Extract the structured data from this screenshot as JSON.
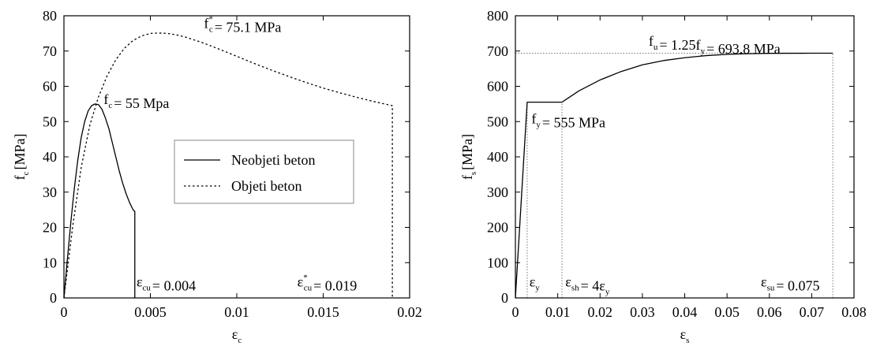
{
  "chart_data": [
    {
      "type": "line",
      "xlabel_base": "ε",
      "xlabel_sub": "c",
      "ylabel_base": "f",
      "ylabel_sub": "c",
      "ylabel_unit": "[MPa]",
      "xlim": [
        0,
        0.02
      ],
      "ylim": [
        0,
        80
      ],
      "xticks": [
        0,
        0.005,
        0.01,
        0.015,
        0.02
      ],
      "xtick_labels": [
        "0",
        "0.005",
        "0.01",
        "0.015",
        "0.02"
      ],
      "yticks": [
        0,
        10,
        20,
        30,
        40,
        50,
        60,
        70,
        80
      ],
      "ytick_labels": [
        "0",
        "10",
        "20",
        "30",
        "40",
        "50",
        "60",
        "70",
        "80"
      ],
      "grid": false,
      "legend": {
        "placement": "center-right",
        "entries": [
          "Neobjeti beton",
          "Objeti beton"
        ]
      },
      "series": [
        {
          "name": "Neobjeti beton",
          "style": "solid",
          "x": [
            0,
            0.0002,
            0.0004,
            0.0006,
            0.0008,
            0.001,
            0.0012,
            0.0014,
            0.0016,
            0.0018,
            0.002,
            0.0022,
            0.0024,
            0.0026,
            0.0028,
            0.003,
            0.0032,
            0.0034,
            0.0036,
            0.0038,
            0.004,
            0.0041,
            0.0041
          ],
          "y": [
            0,
            11,
            21.5,
            31,
            39,
            45.5,
            50,
            53,
            54.5,
            55,
            54.8,
            53.5,
            51,
            48,
            44,
            40,
            36,
            32.5,
            29.5,
            27,
            25,
            24.5,
            0
          ]
        },
        {
          "name": "Objeti beton",
          "style": "dotted",
          "x": [
            0,
            0.0005,
            0.001,
            0.0015,
            0.002,
            0.0025,
            0.003,
            0.0035,
            0.004,
            0.0045,
            0.005,
            0.0055,
            0.006,
            0.0065,
            0.007,
            0.008,
            0.009,
            0.01,
            0.011,
            0.012,
            0.013,
            0.014,
            0.015,
            0.016,
            0.017,
            0.018,
            0.019,
            0.019
          ],
          "y": [
            0,
            20,
            37,
            49,
            57,
            63,
            67.5,
            70.8,
            73,
            74.3,
            75,
            75.1,
            75,
            74.6,
            74,
            72.4,
            70.5,
            68.5,
            66.5,
            64.6,
            62.8,
            61.1,
            59.5,
            58.1,
            56.8,
            55.6,
            54.5,
            0
          ]
        }
      ],
      "annotations": [
        {
          "base": "f",
          "sub": "c",
          "rest": "= 55 Mpa",
          "x": 0.0023,
          "y": 55
        },
        {
          "base": "f",
          "sup": "*",
          "sub": "c",
          "rest": "= 75.1 MPa",
          "x": 0.0081,
          "y": 76.5
        },
        {
          "base": "ε",
          "sub": "cu",
          "rest": "= 0.004",
          "x": 0.0042,
          "y": 3.2
        },
        {
          "base": "ε",
          "sub": "cu",
          "sup": "*",
          "rest": "= 0.019",
          "x": 0.0135,
          "y": 3.2
        }
      ]
    },
    {
      "type": "line",
      "xlabel_base": "ε",
      "xlabel_sub": "s",
      "ylabel_base": "f",
      "ylabel_sub": "s",
      "ylabel_unit": "[MPa]",
      "xlim": [
        0,
        0.08
      ],
      "ylim": [
        0,
        800
      ],
      "xticks": [
        0,
        0.01,
        0.02,
        0.03,
        0.04,
        0.05,
        0.06,
        0.07,
        0.08
      ],
      "xtick_labels": [
        "0",
        "0.01",
        "0.02",
        "0.03",
        "0.04",
        "0.05",
        "0.06",
        "0.07",
        "0.08"
      ],
      "yticks": [
        0,
        100,
        200,
        300,
        400,
        500,
        600,
        700,
        800
      ],
      "ytick_labels": [
        "0",
        "100",
        "200",
        "300",
        "400",
        "500",
        "600",
        "700",
        "800"
      ],
      "grid": false,
      "series": [
        {
          "style": "solid",
          "x": [
            0,
            0.00278,
            0.011,
            0.015,
            0.02,
            0.025,
            0.03,
            0.035,
            0.04,
            0.045,
            0.05,
            0.055,
            0.06,
            0.065,
            0.07,
            0.075
          ],
          "y": [
            0,
            555,
            555,
            587,
            618,
            642,
            661,
            673,
            681,
            687,
            690.5,
            692.5,
            693.4,
            693.7,
            693.8,
            693.8
          ]
        }
      ],
      "reference_lines": [
        {
          "orientation": "horizontal",
          "y": 693.8,
          "x_from": 0,
          "x_to": 0.075
        },
        {
          "orientation": "vertical",
          "x": 0.00278,
          "y_from": 0,
          "y_to": 555
        },
        {
          "orientation": "vertical",
          "x": 0.011,
          "y_from": 0,
          "y_to": 555
        },
        {
          "orientation": "vertical",
          "x": 0.075,
          "y_from": 0,
          "y_to": 693.8
        }
      ],
      "annotations": [
        {
          "base": "f",
          "sub": "u",
          "rest": "= 1.25f",
          "sub2": "y",
          "rest2": "= 693.8 MPa",
          "x": 0.0315,
          "y": 715
        },
        {
          "base": "f",
          "sub": "y",
          "rest": "= 555 MPa",
          "x": 0.0038,
          "y": 495
        },
        {
          "base": "ε",
          "sub": "y",
          "rest": "",
          "x": 0.0033,
          "y": 32
        },
        {
          "base": "ε",
          "sub": "sh",
          "rest": "= 4ε",
          "sub2": "y",
          "rest2": "",
          "x": 0.0118,
          "y": 32
        },
        {
          "base": "ε",
          "sub": "su",
          "rest": "= 0.075",
          "x": 0.058,
          "y": 32
        }
      ]
    }
  ]
}
